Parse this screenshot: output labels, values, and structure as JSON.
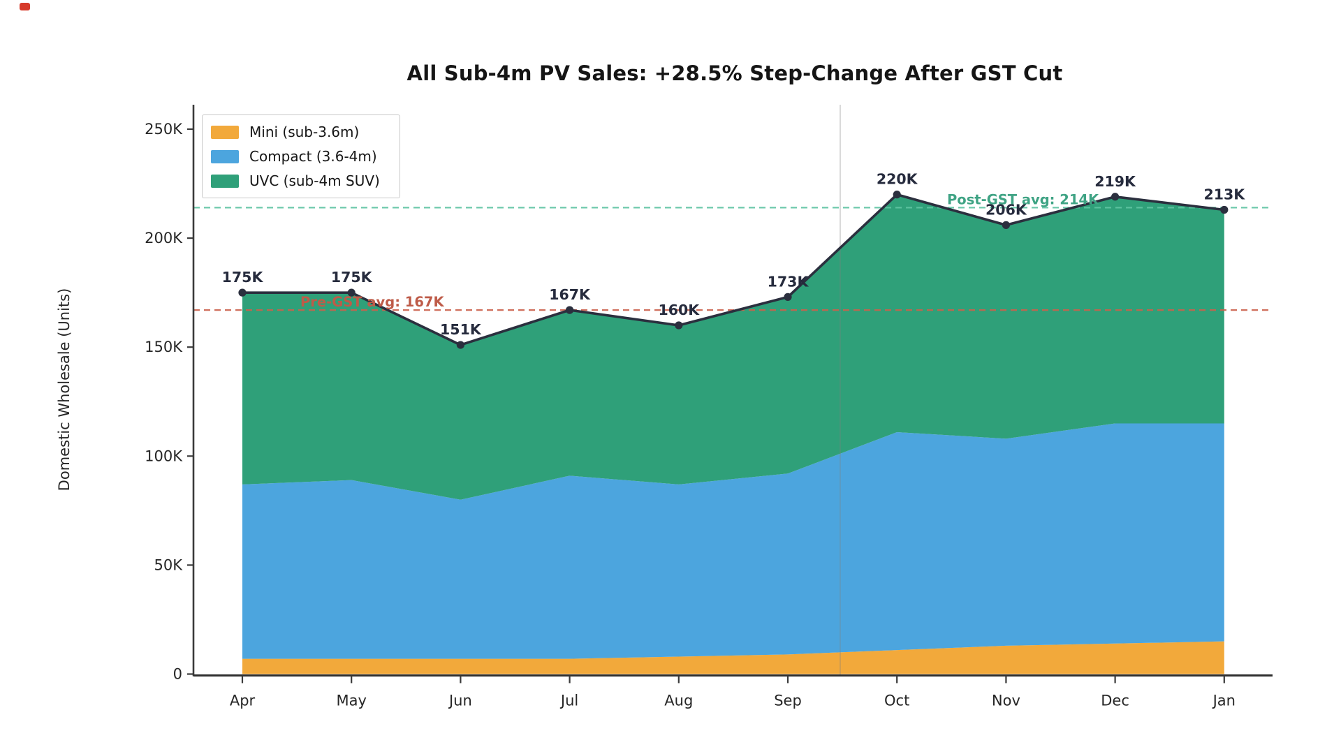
{
  "misc": {
    "corner_dot_color": "#D63A2A"
  },
  "chart_data": {
    "type": "area",
    "stacked": true,
    "title": "All Sub-4m PV Sales: +28.5% Step-Change After GST Cut",
    "ylabel": "Domestic Wholesale (Units)",
    "xlabel": "",
    "unit": "K units",
    "categories": [
      "Apr",
      "May",
      "Jun",
      "Jul",
      "Aug",
      "Sep",
      "Oct",
      "Nov",
      "Dec",
      "Jan"
    ],
    "series": [
      {
        "name": "Mini (sub-3.6m)",
        "color": "#F2A93B",
        "values": [
          7,
          7,
          7,
          7,
          8,
          9,
          11,
          13,
          14,
          15
        ]
      },
      {
        "name": "Compact (3.6-4m)",
        "color": "#4CA5DE",
        "values": [
          80,
          82,
          73,
          84,
          79,
          83,
          100,
          95,
          101,
          100
        ]
      },
      {
        "name": "UVC (sub-4m SUV)",
        "color": "#2FA079",
        "values": [
          88,
          86,
          71,
          76,
          73,
          81,
          109,
          98,
          104,
          98
        ]
      }
    ],
    "totals": [
      175,
      175,
      151,
      167,
      160,
      173,
      220,
      206,
      219,
      213
    ],
    "total_labels": [
      "175K",
      "175K",
      "151K",
      "167K",
      "160K",
      "173K",
      "220K",
      "206K",
      "219K",
      "213K"
    ],
    "total_line_color": "#2B2F3E",
    "data_label_color": "#262B3D",
    "y_ticks": [
      {
        "value": 0,
        "label": "0"
      },
      {
        "value": 50,
        "label": "50K"
      },
      {
        "value": 100,
        "label": "100K"
      },
      {
        "value": 150,
        "label": "150K"
      },
      {
        "value": 200,
        "label": "200K"
      },
      {
        "value": 250,
        "label": "250K"
      }
    ],
    "ylim": [
      0,
      262
    ],
    "legend_position": "upper left",
    "grid": false,
    "reference_lines": [
      {
        "id": "pre_gst",
        "label": "Pre-GST avg: 167K",
        "value": 167,
        "line_color": "#CB604C",
        "text_color": "#BE5B48"
      },
      {
        "id": "post_gst",
        "label": "Post-GST avg: 214K",
        "value": 214,
        "line_color": "#5FC4A2",
        "text_color": "#3FA384"
      }
    ],
    "gst_cut_line": {
      "position_index": 5.48,
      "color": "rgba(128,128,128,0.38)"
    },
    "axis_color": "#3A3A3A",
    "tick_label_color": "#262626"
  }
}
